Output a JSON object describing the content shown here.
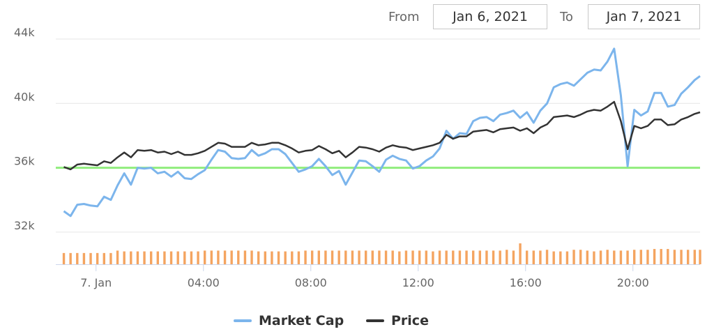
{
  "range_selector": {
    "from_label": "From",
    "from_value": "Jan 6, 2021",
    "to_label": "To",
    "to_value": "Jan 7, 2021"
  },
  "colors": {
    "market_cap": "#7cb5ec",
    "price": "#333333",
    "volume": "#f4a460",
    "reference_line": "#90ed7d",
    "grid": "#e6e6e6",
    "axis": "#ccd6eb"
  },
  "chart_data": {
    "type": "line",
    "title": "",
    "xlabel": "",
    "ylabel": "",
    "ylim": [
      30000,
      44000
    ],
    "y_ticks": [
      {
        "value": 32000,
        "label": "32k"
      },
      {
        "value": 36000,
        "label": "36k"
      },
      {
        "value": 40000,
        "label": "40k"
      },
      {
        "value": 44000,
        "label": "44k"
      }
    ],
    "x_range_hours": [
      -1.5,
      22.5
    ],
    "x_ticks": [
      {
        "hour": 0,
        "label": "7. Jan"
      },
      {
        "hour": 4,
        "label": "04:00"
      },
      {
        "hour": 8,
        "label": "08:00"
      },
      {
        "hour": 12,
        "label": "12:00"
      },
      {
        "hour": 16,
        "label": "16:00"
      },
      {
        "hour": 20,
        "label": "20:00"
      }
    ],
    "legend_position": "bottom-center",
    "reference_line": {
      "value": 36000
    },
    "series": [
      {
        "name": "Market Cap",
        "points": [
          [
            -1.2,
            33300
          ],
          [
            -0.95,
            33000
          ],
          [
            -0.7,
            33700
          ],
          [
            -0.45,
            33750
          ],
          [
            -0.2,
            33650
          ],
          [
            0.05,
            33600
          ],
          [
            0.3,
            34200
          ],
          [
            0.55,
            34000
          ],
          [
            0.8,
            34900
          ],
          [
            1.05,
            35650
          ],
          [
            1.3,
            34950
          ],
          [
            1.55,
            36000
          ],
          [
            1.8,
            35950
          ],
          [
            2.05,
            36000
          ],
          [
            2.3,
            35650
          ],
          [
            2.55,
            35750
          ],
          [
            2.8,
            35450
          ],
          [
            3.05,
            35750
          ],
          [
            3.3,
            35350
          ],
          [
            3.55,
            35300
          ],
          [
            3.8,
            35600
          ],
          [
            4.05,
            35850
          ],
          [
            4.3,
            36500
          ],
          [
            4.55,
            37100
          ],
          [
            4.8,
            37000
          ],
          [
            5.05,
            36600
          ],
          [
            5.3,
            36550
          ],
          [
            5.55,
            36600
          ],
          [
            5.8,
            37100
          ],
          [
            6.05,
            36750
          ],
          [
            6.3,
            36900
          ],
          [
            6.55,
            37150
          ],
          [
            6.8,
            37150
          ],
          [
            7.05,
            36850
          ],
          [
            7.3,
            36300
          ],
          [
            7.55,
            35750
          ],
          [
            7.8,
            35900
          ],
          [
            8.05,
            36100
          ],
          [
            8.3,
            36550
          ],
          [
            8.55,
            36100
          ],
          [
            8.8,
            35550
          ],
          [
            9.05,
            35800
          ],
          [
            9.3,
            34950
          ],
          [
            9.55,
            35700
          ],
          [
            9.8,
            36450
          ],
          [
            10.05,
            36400
          ],
          [
            10.3,
            36100
          ],
          [
            10.55,
            35750
          ],
          [
            10.8,
            36500
          ],
          [
            11.05,
            36750
          ],
          [
            11.3,
            36550
          ],
          [
            11.55,
            36450
          ],
          [
            11.8,
            35950
          ],
          [
            12.05,
            36100
          ],
          [
            12.3,
            36450
          ],
          [
            12.55,
            36700
          ],
          [
            12.8,
            37200
          ],
          [
            13.05,
            38300
          ],
          [
            13.3,
            37800
          ],
          [
            13.55,
            38150
          ],
          [
            13.8,
            38100
          ],
          [
            14.05,
            38900
          ],
          [
            14.3,
            39100
          ],
          [
            14.55,
            39150
          ],
          [
            14.8,
            38900
          ],
          [
            15.05,
            39300
          ],
          [
            15.3,
            39400
          ],
          [
            15.55,
            39550
          ],
          [
            15.8,
            39100
          ],
          [
            16.05,
            39450
          ],
          [
            16.3,
            38800
          ],
          [
            16.55,
            39550
          ],
          [
            16.8,
            40000
          ],
          [
            17.05,
            41000
          ],
          [
            17.3,
            41200
          ],
          [
            17.55,
            41300
          ],
          [
            17.8,
            41100
          ],
          [
            18.05,
            41500
          ],
          [
            18.3,
            41900
          ],
          [
            18.55,
            42100
          ],
          [
            18.8,
            42050
          ],
          [
            19.05,
            42600
          ],
          [
            19.3,
            43400
          ],
          [
            19.55,
            40500
          ],
          [
            19.8,
            36100
          ],
          [
            20.05,
            39600
          ],
          [
            20.3,
            39250
          ],
          [
            20.55,
            39500
          ],
          [
            20.8,
            40650
          ],
          [
            21.05,
            40650
          ],
          [
            21.3,
            39800
          ],
          [
            21.55,
            39900
          ],
          [
            21.8,
            40600
          ],
          [
            22.05,
            41000
          ],
          [
            22.3,
            41450
          ],
          [
            22.5,
            41700
          ]
        ]
      },
      {
        "name": "Price",
        "points": [
          [
            -1.2,
            36050
          ],
          [
            -0.95,
            35900
          ],
          [
            -0.7,
            36200
          ],
          [
            -0.45,
            36250
          ],
          [
            -0.2,
            36200
          ],
          [
            0.05,
            36150
          ],
          [
            0.3,
            36400
          ],
          [
            0.55,
            36300
          ],
          [
            0.8,
            36650
          ],
          [
            1.05,
            36950
          ],
          [
            1.3,
            36650
          ],
          [
            1.55,
            37100
          ],
          [
            1.8,
            37050
          ],
          [
            2.05,
            37100
          ],
          [
            2.3,
            36950
          ],
          [
            2.55,
            37000
          ],
          [
            2.8,
            36850
          ],
          [
            3.05,
            37000
          ],
          [
            3.3,
            36800
          ],
          [
            3.55,
            36800
          ],
          [
            3.8,
            36900
          ],
          [
            4.05,
            37050
          ],
          [
            4.3,
            37300
          ],
          [
            4.55,
            37550
          ],
          [
            4.8,
            37500
          ],
          [
            5.05,
            37300
          ],
          [
            5.3,
            37300
          ],
          [
            5.55,
            37300
          ],
          [
            5.8,
            37550
          ],
          [
            6.05,
            37400
          ],
          [
            6.3,
            37450
          ],
          [
            6.55,
            37550
          ],
          [
            6.8,
            37550
          ],
          [
            7.05,
            37400
          ],
          [
            7.3,
            37200
          ],
          [
            7.55,
            36950
          ],
          [
            7.8,
            37050
          ],
          [
            8.05,
            37100
          ],
          [
            8.3,
            37350
          ],
          [
            8.55,
            37150
          ],
          [
            8.8,
            36900
          ],
          [
            9.05,
            37050
          ],
          [
            9.3,
            36650
          ],
          [
            9.55,
            36950
          ],
          [
            9.8,
            37300
          ],
          [
            10.05,
            37250
          ],
          [
            10.3,
            37150
          ],
          [
            10.55,
            37000
          ],
          [
            10.8,
            37250
          ],
          [
            11.05,
            37400
          ],
          [
            11.3,
            37300
          ],
          [
            11.55,
            37250
          ],
          [
            11.8,
            37100
          ],
          [
            12.05,
            37200
          ],
          [
            12.3,
            37300
          ],
          [
            12.55,
            37400
          ],
          [
            12.8,
            37550
          ],
          [
            13.05,
            38050
          ],
          [
            13.3,
            37800
          ],
          [
            13.55,
            37950
          ],
          [
            13.8,
            37950
          ],
          [
            14.05,
            38250
          ],
          [
            14.3,
            38300
          ],
          [
            14.55,
            38350
          ],
          [
            14.8,
            38200
          ],
          [
            15.05,
            38400
          ],
          [
            15.3,
            38450
          ],
          [
            15.55,
            38500
          ],
          [
            15.8,
            38300
          ],
          [
            16.05,
            38450
          ],
          [
            16.3,
            38150
          ],
          [
            16.55,
            38500
          ],
          [
            16.8,
            38700
          ],
          [
            17.05,
            39150
          ],
          [
            17.3,
            39200
          ],
          [
            17.55,
            39250
          ],
          [
            17.8,
            39150
          ],
          [
            18.05,
            39300
          ],
          [
            18.3,
            39500
          ],
          [
            18.55,
            39600
          ],
          [
            18.8,
            39550
          ],
          [
            19.05,
            39800
          ],
          [
            19.3,
            40100
          ],
          [
            19.55,
            38900
          ],
          [
            19.8,
            37150
          ],
          [
            20.05,
            38600
          ],
          [
            20.3,
            38450
          ],
          [
            20.55,
            38600
          ],
          [
            20.8,
            39000
          ],
          [
            21.05,
            39000
          ],
          [
            21.3,
            38650
          ],
          [
            21.55,
            38700
          ],
          [
            21.8,
            39000
          ],
          [
            22.05,
            39150
          ],
          [
            22.3,
            39350
          ],
          [
            22.5,
            39450
          ]
        ]
      }
    ],
    "volume": {
      "baseline": 30000,
      "points": [
        [
          -1.2,
          30700
        ],
        [
          -0.95,
          30700
        ],
        [
          -0.7,
          30700
        ],
        [
          -0.45,
          30700
        ],
        [
          -0.2,
          30700
        ],
        [
          0.05,
          30700
        ],
        [
          0.3,
          30700
        ],
        [
          0.55,
          30700
        ],
        [
          0.8,
          30850
        ],
        [
          1.05,
          30800
        ],
        [
          1.3,
          30800
        ],
        [
          1.55,
          30800
        ],
        [
          1.8,
          30800
        ],
        [
          2.05,
          30800
        ],
        [
          2.3,
          30800
        ],
        [
          2.55,
          30800
        ],
        [
          2.8,
          30800
        ],
        [
          3.05,
          30800
        ],
        [
          3.3,
          30800
        ],
        [
          3.55,
          30800
        ],
        [
          3.8,
          30800
        ],
        [
          4.05,
          30850
        ],
        [
          4.3,
          30850
        ],
        [
          4.55,
          30850
        ],
        [
          4.8,
          30850
        ],
        [
          5.05,
          30850
        ],
        [
          5.3,
          30850
        ],
        [
          5.55,
          30850
        ],
        [
          5.8,
          30850
        ],
        [
          6.05,
          30800
        ],
        [
          6.3,
          30800
        ],
        [
          6.55,
          30800
        ],
        [
          6.8,
          30800
        ],
        [
          7.05,
          30800
        ],
        [
          7.3,
          30800
        ],
        [
          7.55,
          30800
        ],
        [
          7.8,
          30850
        ],
        [
          8.05,
          30850
        ],
        [
          8.3,
          30850
        ],
        [
          8.55,
          30850
        ],
        [
          8.8,
          30850
        ],
        [
          9.05,
          30850
        ],
        [
          9.3,
          30850
        ],
        [
          9.55,
          30850
        ],
        [
          9.8,
          30850
        ],
        [
          10.05,
          30850
        ],
        [
          10.3,
          30850
        ],
        [
          10.55,
          30850
        ],
        [
          10.8,
          30850
        ],
        [
          11.05,
          30850
        ],
        [
          11.3,
          30800
        ],
        [
          11.55,
          30850
        ],
        [
          11.8,
          30850
        ],
        [
          12.05,
          30850
        ],
        [
          12.3,
          30850
        ],
        [
          12.55,
          30800
        ],
        [
          12.8,
          30850
        ],
        [
          13.05,
          30850
        ],
        [
          13.3,
          30850
        ],
        [
          13.55,
          30850
        ],
        [
          13.8,
          30850
        ],
        [
          14.05,
          30850
        ],
        [
          14.3,
          30850
        ],
        [
          14.55,
          30850
        ],
        [
          14.8,
          30850
        ],
        [
          15.05,
          30850
        ],
        [
          15.3,
          30900
        ],
        [
          15.55,
          30850
        ],
        [
          15.8,
          31300
        ],
        [
          16.05,
          30850
        ],
        [
          16.3,
          30850
        ],
        [
          16.55,
          30850
        ],
        [
          16.8,
          30900
        ],
        [
          17.05,
          30800
        ],
        [
          17.3,
          30800
        ],
        [
          17.55,
          30800
        ],
        [
          17.8,
          30900
        ],
        [
          18.05,
          30900
        ],
        [
          18.3,
          30850
        ],
        [
          18.55,
          30800
        ],
        [
          18.8,
          30850
        ],
        [
          19.05,
          30900
        ],
        [
          19.3,
          30850
        ],
        [
          19.55,
          30850
        ],
        [
          19.8,
          30850
        ],
        [
          20.05,
          30900
        ],
        [
          20.3,
          30900
        ],
        [
          20.55,
          30900
        ],
        [
          20.8,
          30950
        ],
        [
          21.05,
          30950
        ],
        [
          21.3,
          30950
        ],
        [
          21.55,
          30900
        ],
        [
          21.8,
          30900
        ],
        [
          22.05,
          30900
        ],
        [
          22.3,
          30900
        ],
        [
          22.5,
          30900
        ]
      ]
    }
  }
}
